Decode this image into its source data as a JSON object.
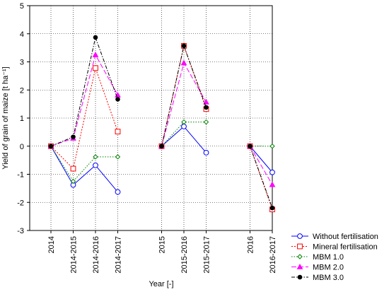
{
  "chart_data": {
    "type": "line",
    "xlabel": "Year [-]",
    "ylabel": "Yield of grain of maize [t ha⁻¹]",
    "ylim": [
      -3,
      5
    ],
    "y_ticks": [
      5,
      4,
      3,
      2,
      1,
      0,
      -1,
      -2,
      -3
    ],
    "grid": true,
    "legend_position": "bottom-right",
    "categories": [
      "2014",
      "2014-2015",
      "2014-2016",
      "2014-2017",
      "2015",
      "2015-2016",
      "2015-2017",
      "2016",
      "2016-2017"
    ],
    "category_gaps_after": [
      "2014-2017",
      "2015-2017"
    ],
    "groups": [
      [
        "2014",
        "2014-2015",
        "2014-2016",
        "2014-2017"
      ],
      [
        "2015",
        "2015-2016",
        "2015-2017"
      ],
      [
        "2016",
        "2016-2017"
      ]
    ],
    "series": [
      {
        "name": "Without fertilisation",
        "color": "#0000ff",
        "marker": "circle",
        "dash": "solid",
        "values": [
          0,
          -1.38,
          -0.68,
          -1.63,
          0,
          0.7,
          -0.23,
          0,
          -0.93
        ]
      },
      {
        "name": "Mineral fertilisation",
        "color": "#ff0000",
        "marker": "square",
        "dash": "dotted-fine",
        "values": [
          0,
          -0.8,
          2.78,
          0.52,
          0,
          3.57,
          1.32,
          0,
          -2.25
        ]
      },
      {
        "name": "MBM 1.0",
        "color": "#008000",
        "marker": "diamond",
        "dash": "dotted",
        "values": [
          0,
          -1.25,
          -0.38,
          -0.38,
          0,
          0.86,
          0.86,
          0,
          0
        ]
      },
      {
        "name": "MBM 2.0",
        "color": "#ff00ff",
        "marker": "triangle",
        "dash": "dashed",
        "values": [
          0,
          0.28,
          3.25,
          1.82,
          0,
          2.96,
          1.57,
          0,
          -1.37
        ]
      },
      {
        "name": "MBM 3.0",
        "color": "#000000",
        "marker": "filled-circle",
        "dash": "dash-dot",
        "values": [
          0,
          0.33,
          3.87,
          1.67,
          0,
          3.57,
          1.38,
          0,
          -2.2
        ]
      }
    ]
  }
}
